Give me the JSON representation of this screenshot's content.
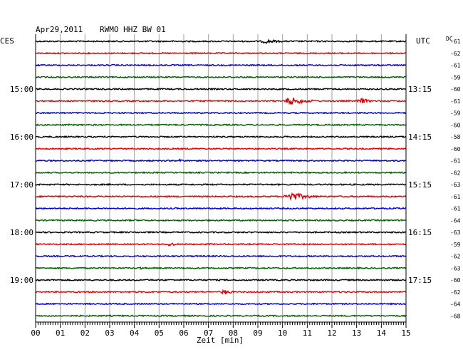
{
  "header": {
    "date": "Apr29,2011",
    "station": "RWMO HHZ BW 01",
    "left_tz": "CES",
    "right_tz": "UTC",
    "dc_label": "DC"
  },
  "chart_data": {
    "type": "line",
    "title": "Apr29,2011 RWMO HHZ BW 01",
    "xlabel": "Zeit [min]",
    "x_ticks": [
      "00",
      "01",
      "02",
      "03",
      "04",
      "05",
      "06",
      "07",
      "08",
      "09",
      "10",
      "11",
      "12",
      "13",
      "14",
      "15"
    ],
    "xlim": [
      0,
      15
    ],
    "trace_count": 24,
    "trace_colors": [
      "#000000",
      "#e00000",
      "#0000d0",
      "#006000"
    ],
    "left_hour_labels": [
      {
        "trace": 4,
        "text": "15:00"
      },
      {
        "trace": 8,
        "text": "16:00"
      },
      {
        "trace": 12,
        "text": "17:00"
      },
      {
        "trace": 16,
        "text": "18:00"
      },
      {
        "trace": 20,
        "text": "19:00"
      }
    ],
    "right_hour_labels": [
      {
        "trace": 4,
        "text": "13:15"
      },
      {
        "trace": 8,
        "text": "14:15"
      },
      {
        "trace": 12,
        "text": "15:15"
      },
      {
        "trace": 16,
        "text": "16:15"
      },
      {
        "trace": 20,
        "text": "17:15"
      }
    ],
    "dc_offsets": [
      "-61",
      "-62",
      "-61",
      "-59",
      "-60",
      "-61",
      "-59",
      "-60",
      "-58",
      "-60",
      "-61",
      "-62",
      "-63",
      "-61",
      "-61",
      "-64",
      "-63",
      "-59",
      "-62",
      "-63",
      "-60",
      "-62",
      "-64",
      "-68"
    ],
    "events": [
      {
        "trace": 0,
        "start_min": 9.0,
        "end_min": 11.0,
        "amplitude": 3
      },
      {
        "trace": 5,
        "start_min": 10.0,
        "end_min": 12.0,
        "amplitude": 6
      },
      {
        "trace": 5,
        "start_min": 13.0,
        "end_min": 14.0,
        "amplitude": 5
      },
      {
        "trace": 6,
        "start_min": 2.7,
        "end_min": 3.2,
        "amplitude": 2
      },
      {
        "trace": 10,
        "start_min": 5.8,
        "end_min": 6.1,
        "amplitude": 4
      },
      {
        "trace": 13,
        "start_min": 10.0,
        "end_min": 12.0,
        "amplitude": 7
      },
      {
        "trace": 17,
        "start_min": 5.3,
        "end_min": 6.0,
        "amplitude": 4
      },
      {
        "trace": 19,
        "start_min": 4.2,
        "end_min": 4.5,
        "amplitude": 3
      },
      {
        "trace": 21,
        "start_min": 7.5,
        "end_min": 8.3,
        "amplitude": 5
      }
    ]
  }
}
